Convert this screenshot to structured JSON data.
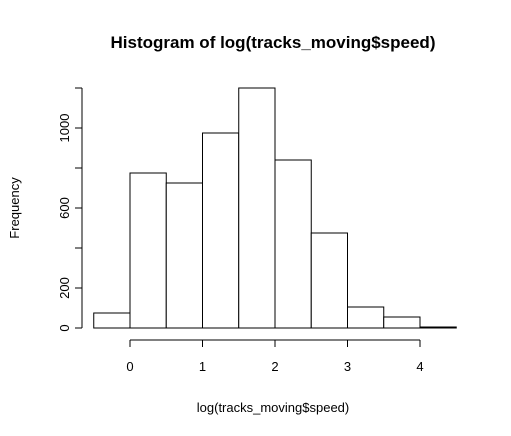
{
  "chart_data": {
    "type": "bar",
    "title": "Histogram of log(tracks_moving$speed)",
    "xlabel": "log(tracks_moving$speed)",
    "ylabel": "Frequency",
    "bins": [
      {
        "from": -0.5,
        "to": 0.0,
        "count": 75
      },
      {
        "from": 0.0,
        "to": 0.5,
        "count": 775
      },
      {
        "from": 0.5,
        "to": 1.0,
        "count": 725
      },
      {
        "from": 1.0,
        "to": 1.5,
        "count": 975
      },
      {
        "from": 1.5,
        "to": 2.0,
        "count": 1200
      },
      {
        "from": 2.0,
        "to": 2.5,
        "count": 840
      },
      {
        "from": 2.5,
        "to": 3.0,
        "count": 475
      },
      {
        "from": 3.0,
        "to": 3.5,
        "count": 105
      },
      {
        "from": 3.5,
        "to": 4.0,
        "count": 55
      },
      {
        "from": 4.0,
        "to": 4.5,
        "count": 5
      }
    ],
    "x_ticks": [
      0,
      1,
      2,
      3,
      4
    ],
    "y_ticks": [
      0,
      200,
      600,
      1000
    ],
    "xlim": [
      -0.5,
      4.5
    ],
    "ylim": [
      0,
      1200
    ],
    "grid": false,
    "colors": {
      "bar_fill": "#ffffff",
      "bar_stroke": "#000000"
    }
  }
}
